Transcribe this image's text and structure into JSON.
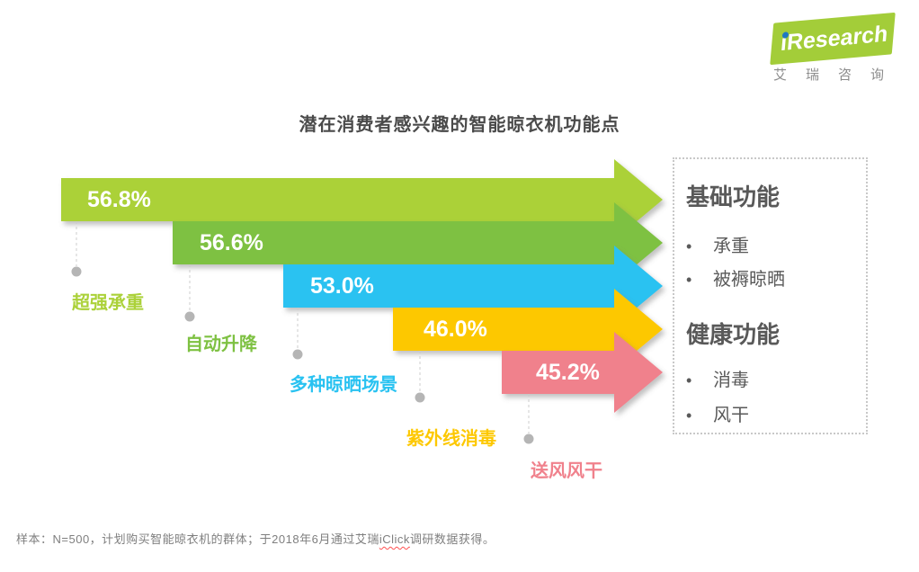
{
  "logo": {
    "i": "i",
    "text": "Research",
    "subtitle": "艾瑞咨询"
  },
  "title": "潜在消费者感兴趣的智能晾衣机功能点",
  "chart_data": {
    "type": "bar",
    "subtype": "staggered-horizontal-arrows",
    "title": "潜在消费者感兴趣的智能晾衣机功能点",
    "categories": [
      "超强承重",
      "自动升降",
      "多种晾晒场景",
      "紫外线消毒",
      "送风风干"
    ],
    "values": [
      56.8,
      56.6,
      53.0,
      46.0,
      45.2
    ],
    "value_labels": [
      "56.8%",
      "56.6%",
      "53.0%",
      "46.0%",
      "45.2%"
    ],
    "unit": "%",
    "colors": [
      "#abd139",
      "#7ec142",
      "#29c2f1",
      "#fdc800",
      "#f0818c"
    ],
    "legend": "none",
    "grid": "off",
    "value_label_color": "#ffffff"
  },
  "panel": {
    "sections": [
      {
        "heading": "基础功能",
        "items": [
          "承重",
          "被褥晾晒"
        ]
      },
      {
        "heading": "健康功能",
        "items": [
          "消毒",
          "风干"
        ]
      }
    ],
    "bullet": "•"
  },
  "footer": {
    "pre": "样本：N=500，计划购买智能晾衣机的群体；于2018年6月通过艾瑞",
    "highlight": "iClick",
    "post": "调研数据获得。"
  }
}
